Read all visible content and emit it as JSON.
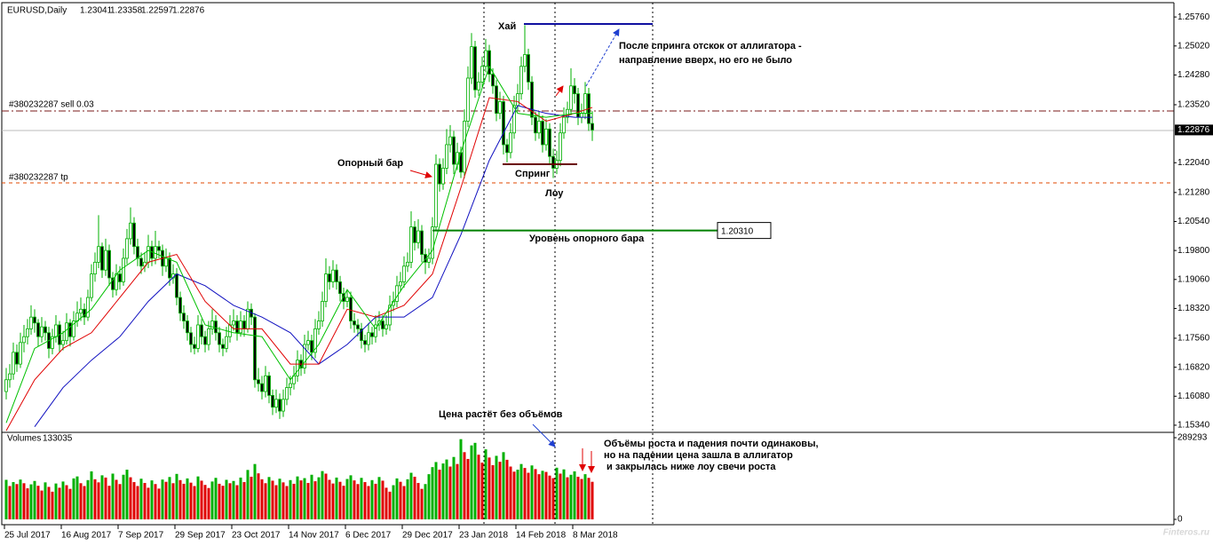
{
  "chart_data": {
    "type": "candlestick",
    "symbol": "EURUSD,Daily",
    "ylim": [
      1.1518,
      1.2608
    ],
    "yticks": [
      {
        "value": 1.2576,
        "label": "1.25760"
      },
      {
        "value": 1.2502,
        "label": "1.25020"
      },
      {
        "value": 1.2428,
        "label": "1.24280"
      },
      {
        "value": 1.2352,
        "label": "1.23520"
      },
      {
        "value": 1.2204,
        "label": "1.22040"
      },
      {
        "value": 1.2128,
        "label": "1.21280"
      },
      {
        "value": 1.2054,
        "label": "1.20540"
      },
      {
        "value": 1.198,
        "label": "1.19800"
      },
      {
        "value": 1.1906,
        "label": "1.19060"
      },
      {
        "value": 1.1832,
        "label": "1.18320"
      },
      {
        "value": 1.1756,
        "label": "1.17560"
      },
      {
        "value": 1.1682,
        "label": "1.16820"
      },
      {
        "value": 1.1608,
        "label": "1.16080"
      },
      {
        "value": 1.1534,
        "label": "1.15340"
      }
    ],
    "xticks": [
      {
        "value": 0,
        "label": "25 Jul 2017"
      },
      {
        "value": 16,
        "label": "16 Aug 2017"
      },
      {
        "value": 32,
        "label": "7 Sep 2017"
      },
      {
        "value": 48,
        "label": "29 Sep 2017"
      },
      {
        "value": 64,
        "label": "23 Oct 2017"
      },
      {
        "value": 80,
        "label": "14 Nov 2017"
      },
      {
        "value": 96,
        "label": "6 Dec 2017"
      },
      {
        "value": 112,
        "label": "29 Dec 2017"
      },
      {
        "value": 128,
        "label": "23 Jan 2018"
      },
      {
        "value": 144,
        "label": "14 Feb 2018"
      },
      {
        "value": 160,
        "label": "8 Mar 2018"
      }
    ],
    "up_color": "#00b000",
    "down_color": "#e00000",
    "candles": [
      [
        1.162,
        1.168,
        1.16,
        1.165
      ],
      [
        1.165,
        1.169,
        1.163,
        1.1665
      ],
      [
        1.1665,
        1.1745,
        1.165,
        1.172
      ],
      [
        1.172,
        1.174,
        1.167,
        1.169
      ],
      [
        1.169,
        1.177,
        1.168,
        1.1745
      ],
      [
        1.1745,
        1.179,
        1.172,
        1.176
      ],
      [
        1.176,
        1.1805,
        1.174,
        1.178
      ],
      [
        1.178,
        1.184,
        1.1765,
        1.181
      ],
      [
        1.181,
        1.183,
        1.177,
        1.1795
      ],
      [
        1.1795,
        1.1805,
        1.1735,
        1.176
      ],
      [
        1.176,
        1.181,
        1.1745,
        1.1785
      ],
      [
        1.1785,
        1.18,
        1.175,
        1.177
      ],
      [
        1.177,
        1.1785,
        1.1705,
        1.173
      ],
      [
        1.173,
        1.178,
        1.1715,
        1.176
      ],
      [
        1.176,
        1.1815,
        1.1745,
        1.179
      ],
      [
        1.179,
        1.18,
        1.172,
        1.174
      ],
      [
        1.174,
        1.1775,
        1.1725,
        1.175
      ],
      [
        1.175,
        1.182,
        1.174,
        1.1795
      ],
      [
        1.1795,
        1.1805,
        1.1735,
        1.176
      ],
      [
        1.176,
        1.1825,
        1.175,
        1.18
      ],
      [
        1.18,
        1.185,
        1.1785,
        1.182
      ],
      [
        1.182,
        1.186,
        1.18,
        1.183
      ],
      [
        1.183,
        1.1845,
        1.179,
        1.181
      ],
      [
        1.181,
        1.188,
        1.18,
        1.186
      ],
      [
        1.186,
        1.1945,
        1.185,
        1.192
      ],
      [
        1.192,
        1.1975,
        1.19,
        1.195
      ],
      [
        1.195,
        1.207,
        1.1935,
        1.199
      ],
      [
        1.199,
        1.2,
        1.191,
        1.193
      ],
      [
        1.193,
        1.201,
        1.1915,
        1.198
      ],
      [
        1.198,
        1.1995,
        1.189,
        1.191
      ],
      [
        1.191,
        1.1925,
        1.186,
        1.188
      ],
      [
        1.188,
        1.1945,
        1.1865,
        1.192
      ],
      [
        1.192,
        1.194,
        1.188,
        1.19
      ],
      [
        1.19,
        1.1985,
        1.189,
        1.196
      ],
      [
        1.196,
        1.2035,
        1.1945,
        1.201
      ],
      [
        1.201,
        1.209,
        1.1995,
        1.205
      ],
      [
        1.205,
        1.2065,
        1.197,
        1.199
      ],
      [
        1.199,
        1.201,
        1.194,
        1.196
      ],
      [
        1.196,
        1.1975,
        1.192,
        1.194
      ],
      [
        1.194,
        1.1975,
        1.1925,
        1.195
      ],
      [
        1.195,
        1.202,
        1.1935,
        1.199
      ],
      [
        1.199,
        1.2005,
        1.194,
        1.196
      ],
      [
        1.196,
        1.203,
        1.1945,
        1.199
      ],
      [
        1.199,
        1.2005,
        1.196,
        1.198
      ],
      [
        1.198,
        1.1995,
        1.1915,
        1.194
      ],
      [
        1.194,
        1.1985,
        1.1925,
        1.196
      ],
      [
        1.196,
        1.1975,
        1.189,
        1.191
      ],
      [
        1.191,
        1.1945,
        1.1895,
        1.192
      ],
      [
        1.192,
        1.1935,
        1.184,
        1.186
      ],
      [
        1.186,
        1.1875,
        1.18,
        1.182
      ],
      [
        1.182,
        1.184,
        1.178,
        1.18
      ],
      [
        1.18,
        1.1815,
        1.175,
        1.177
      ],
      [
        1.177,
        1.1785,
        1.172,
        1.174
      ],
      [
        1.174,
        1.176,
        1.1715,
        1.173
      ],
      [
        1.173,
        1.1815,
        1.172,
        1.179
      ],
      [
        1.179,
        1.1805,
        1.174,
        1.176
      ],
      [
        1.176,
        1.1775,
        1.172,
        1.174
      ],
      [
        1.174,
        1.18,
        1.1725,
        1.178
      ],
      [
        1.178,
        1.183,
        1.1765,
        1.18
      ],
      [
        1.18,
        1.1815,
        1.175,
        1.177
      ],
      [
        1.177,
        1.1785,
        1.172,
        1.174
      ],
      [
        1.174,
        1.1755,
        1.171,
        1.173
      ],
      [
        1.173,
        1.1785,
        1.172,
        1.176
      ],
      [
        1.176,
        1.1815,
        1.1745,
        1.179
      ],
      [
        1.179,
        1.183,
        1.1775,
        1.18
      ],
      [
        1.18,
        1.1815,
        1.175,
        1.177
      ],
      [
        1.177,
        1.1825,
        1.176,
        1.18
      ],
      [
        1.18,
        1.1815,
        1.176,
        1.178
      ],
      [
        1.178,
        1.185,
        1.177,
        1.183
      ],
      [
        1.183,
        1.1845,
        1.179,
        1.181
      ],
      [
        1.181,
        1.182,
        1.163,
        1.165
      ],
      [
        1.165,
        1.168,
        1.162,
        1.164
      ],
      [
        1.164,
        1.166,
        1.16,
        1.162
      ],
      [
        1.162,
        1.1685,
        1.1605,
        1.166
      ],
      [
        1.166,
        1.167,
        1.159,
        1.161
      ],
      [
        1.161,
        1.1625,
        1.156,
        1.158
      ],
      [
        1.158,
        1.1625,
        1.1565,
        1.16
      ],
      [
        1.16,
        1.1615,
        1.155,
        1.157
      ],
      [
        1.157,
        1.1625,
        1.1555,
        1.16
      ],
      [
        1.16,
        1.1655,
        1.1585,
        1.163
      ],
      [
        1.163,
        1.166,
        1.161,
        1.164
      ],
      [
        1.164,
        1.1685,
        1.1625,
        1.166
      ],
      [
        1.166,
        1.1725,
        1.1645,
        1.17
      ],
      [
        1.17,
        1.1715,
        1.166,
        1.168
      ],
      [
        1.168,
        1.1765,
        1.1665,
        1.174
      ],
      [
        1.174,
        1.1775,
        1.1725,
        1.175
      ],
      [
        1.175,
        1.1765,
        1.17,
        1.172
      ],
      [
        1.172,
        1.1805,
        1.1705,
        1.178
      ],
      [
        1.178,
        1.1825,
        1.1765,
        1.18
      ],
      [
        1.18,
        1.1875,
        1.1785,
        1.185
      ],
      [
        1.185,
        1.196,
        1.1835,
        1.192
      ],
      [
        1.192,
        1.194,
        1.188,
        1.19
      ],
      [
        1.19,
        1.1955,
        1.1885,
        1.193
      ],
      [
        1.193,
        1.1945,
        1.188,
        1.19
      ],
      [
        1.19,
        1.1915,
        1.185,
        1.187
      ],
      [
        1.187,
        1.1885,
        1.183,
        1.185
      ],
      [
        1.185,
        1.188,
        1.1835,
        1.186
      ],
      [
        1.186,
        1.1875,
        1.178,
        1.18
      ],
      [
        1.18,
        1.182,
        1.177,
        1.179
      ],
      [
        1.179,
        1.1805,
        1.176,
        1.178
      ],
      [
        1.178,
        1.1795,
        1.173,
        1.175
      ],
      [
        1.175,
        1.1765,
        1.172,
        1.174
      ],
      [
        1.174,
        1.1795,
        1.1725,
        1.177
      ],
      [
        1.177,
        1.1785,
        1.174,
        1.176
      ],
      [
        1.176,
        1.1815,
        1.1745,
        1.179
      ],
      [
        1.179,
        1.1825,
        1.1775,
        1.18
      ],
      [
        1.18,
        1.1815,
        1.176,
        1.178
      ],
      [
        1.178,
        1.1815,
        1.1765,
        1.179
      ],
      [
        1.179,
        1.1865,
        1.1775,
        1.184
      ],
      [
        1.184,
        1.1875,
        1.1825,
        1.185
      ],
      [
        1.185,
        1.1915,
        1.1835,
        1.189
      ],
      [
        1.189,
        1.1925,
        1.1875,
        1.19
      ],
      [
        1.19,
        1.1965,
        1.1885,
        1.194
      ],
      [
        1.194,
        1.1975,
        1.1925,
        1.195
      ],
      [
        1.195,
        1.208,
        1.1935,
        1.204
      ],
      [
        1.204,
        1.2055,
        1.198,
        1.2
      ],
      [
        1.2,
        1.206,
        1.1985,
        1.203
      ],
      [
        1.203,
        1.2045,
        1.195,
        1.197
      ],
      [
        1.197,
        1.1985,
        1.192,
        1.195
      ],
      [
        1.195,
        1.1985,
        1.1935,
        1.196
      ],
      [
        1.196,
        1.2065,
        1.1945,
        1.204
      ],
      [
        1.204,
        1.2225,
        1.2031,
        1.22
      ],
      [
        1.22,
        1.2215,
        1.213,
        1.215
      ],
      [
        1.215,
        1.2215,
        1.2135,
        1.219
      ],
      [
        1.219,
        1.229,
        1.2175,
        1.225
      ],
      [
        1.225,
        1.23,
        1.223,
        1.227
      ],
      [
        1.227,
        1.2285,
        1.2175,
        1.22
      ],
      [
        1.22,
        1.2255,
        1.2185,
        1.223
      ],
      [
        1.223,
        1.2245,
        1.2165,
        1.218
      ],
      [
        1.218,
        1.234,
        1.2165,
        1.231
      ],
      [
        1.231,
        1.245,
        1.2295,
        1.242
      ],
      [
        1.242,
        1.2535,
        1.2405,
        1.25
      ],
      [
        1.25,
        1.2515,
        1.237,
        1.239
      ],
      [
        1.239,
        1.2435,
        1.2375,
        1.241
      ],
      [
        1.241,
        1.2475,
        1.2395,
        1.245
      ],
      [
        1.245,
        1.252,
        1.2435,
        1.249
      ],
      [
        1.249,
        1.2505,
        1.241,
        1.243
      ],
      [
        1.243,
        1.2445,
        1.238,
        1.24
      ],
      [
        1.24,
        1.2415,
        1.231,
        1.233
      ],
      [
        1.233,
        1.2385,
        1.2315,
        1.236
      ],
      [
        1.236,
        1.2375,
        1.2225,
        1.225
      ],
      [
        1.225,
        1.2265,
        1.2205,
        1.223
      ],
      [
        1.223,
        1.2305,
        1.2215,
        1.228
      ],
      [
        1.228,
        1.2375,
        1.2265,
        1.235
      ],
      [
        1.235,
        1.2405,
        1.2335,
        1.238
      ],
      [
        1.238,
        1.2475,
        1.2365,
        1.245
      ],
      [
        1.245,
        1.2555,
        1.2435,
        1.248
      ],
      [
        1.248,
        1.2495,
        1.239,
        1.241
      ],
      [
        1.241,
        1.2425,
        1.23,
        1.232
      ],
      [
        1.232,
        1.2335,
        1.226,
        1.228
      ],
      [
        1.228,
        1.2335,
        1.2265,
        1.231
      ],
      [
        1.231,
        1.2325,
        1.223,
        1.225
      ],
      [
        1.225,
        1.2315,
        1.2235,
        1.229
      ],
      [
        1.229,
        1.2305,
        1.22,
        1.222
      ],
      [
        1.222,
        1.224,
        1.2165,
        1.219
      ],
      [
        1.219,
        1.2235,
        1.2175,
        1.221
      ],
      [
        1.221,
        1.2305,
        1.2195,
        1.228
      ],
      [
        1.228,
        1.2345,
        1.2265,
        1.232
      ],
      [
        1.232,
        1.236,
        1.2305,
        1.234
      ],
      [
        1.234,
        1.2445,
        1.2325,
        1.24
      ],
      [
        1.24,
        1.242,
        1.2355,
        1.238
      ],
      [
        1.238,
        1.2395,
        1.23,
        1.232
      ],
      [
        1.232,
        1.2355,
        1.2305,
        1.233
      ],
      [
        1.233,
        1.241,
        1.2315,
        1.238
      ],
      [
        1.238,
        1.2395,
        1.2285,
        1.23041
      ],
      [
        1.23041,
        1.23358,
        1.22597,
        1.22876
      ]
    ],
    "indicator_x": [
      0,
      8,
      16,
      24,
      32,
      40,
      48,
      56,
      64,
      72,
      80,
      88,
      96,
      104,
      112,
      120,
      128,
      136,
      144,
      152,
      160,
      165
    ],
    "indicators": [
      {
        "color": "#1010c0",
        "values": [
          null,
          1.153,
          1.163,
          1.17,
          1.176,
          1.185,
          1.192,
          1.189,
          1.184,
          1.181,
          1.177,
          1.169,
          1.174,
          1.181,
          1.181,
          1.186,
          1.202,
          1.221,
          1.235,
          1.233,
          1.232,
          1.232
        ]
      },
      {
        "color": "#e00000",
        "values": [
          1.152,
          1.165,
          1.173,
          1.177,
          1.186,
          1.195,
          1.197,
          1.185,
          1.178,
          1.178,
          1.169,
          1.169,
          1.183,
          1.181,
          1.184,
          1.192,
          1.214,
          1.237,
          1.236,
          1.231,
          1.233,
          1.2345
        ]
      },
      {
        "color": "#00c000",
        "values": [
          1.154,
          1.173,
          1.177,
          1.183,
          1.193,
          1.198,
          1.195,
          1.179,
          1.177,
          1.176,
          1.165,
          1.174,
          1.188,
          1.178,
          1.189,
          1.198,
          1.223,
          1.245,
          1.233,
          1.232,
          1.233,
          1.233
        ]
      }
    ],
    "volume_label": "Volumes",
    "volumes": [
      140000,
      118000,
      132000,
      125000,
      141000,
      128000,
      110000,
      124000,
      136000,
      119000,
      102000,
      131000,
      115000,
      98000,
      127000,
      112000,
      134000,
      121000,
      108000,
      145000,
      152000,
      128000,
      118000,
      139000,
      170000,
      142000,
      131000,
      156000,
      148000,
      119000,
      162000,
      140000,
      125000,
      158000,
      176000,
      149000,
      132000,
      118000,
      144000,
      129000,
      112000,
      138000,
      125000,
      109000,
      141000,
      133000,
      150000,
      128000,
      161000,
      139000,
      126000,
      145000,
      130000,
      118000,
      152000,
      137000,
      122000,
      111000,
      134000,
      147000,
      126000,
      119000,
      140000,
      128000,
      136000,
      121000,
      148000,
      132000,
      175000,
      151000,
      196000,
      163000,
      142000,
      128000,
      150000,
      137000,
      121000,
      144000,
      131000,
      118000,
      139000,
      126000,
      152000,
      138000,
      146000,
      129000,
      158000,
      135000,
      149000,
      171000,
      162000,
      140000,
      127000,
      148000,
      133000,
      119000,
      143000,
      156000,
      138000,
      125000,
      147000,
      132000,
      118000,
      139000,
      126000,
      150000,
      137000,
      112000,
      98000,
      121000,
      145000,
      133000,
      118000,
      142000,
      165000,
      151000,
      129000,
      108000,
      125000,
      160000,
      185000,
      203000,
      176000,
      198000,
      212000,
      187000,
      221000,
      196000,
      284000,
      238000,
      214000,
      262000,
      271000,
      229000,
      201000,
      248000,
      219000,
      192000,
      225000,
      204000,
      238000,
      211000,
      187000,
      169000,
      176000,
      196000,
      182000,
      165000,
      191000,
      178000,
      160000,
      172000,
      168000,
      155000,
      146000,
      183000,
      162000,
      177000,
      149000,
      158000,
      170000,
      151000,
      143000,
      160000,
      147000,
      133035
    ],
    "vlim": [
      0,
      289293
    ],
    "vticks": [
      289293,
      0
    ],
    "order_sell": "#380232287 sell 0.03",
    "order_tp": "#380232287 tp",
    "ref_level": {
      "value": 1.2031,
      "label": "1.20310"
    },
    "annotations": {
      "high": "Хай",
      "spring": "Спринг",
      "low": "Лоу",
      "support_bar": "Опорный бар",
      "support_level": "Уровень опорного бара",
      "after_spring": [
        "После спринга отскок от аллигатора -",
        "направление вверх, но его не было"
      ],
      "no_volume": "Цена растёт без объёмов",
      "volumes_note": [
        "Объёмы роста и падения почти одинаковы,",
        "но на падении цена зашла в аллигатор",
        " и закрылась ниже лоу свечи роста"
      ]
    },
    "watermark": "Finteros.ru"
  }
}
